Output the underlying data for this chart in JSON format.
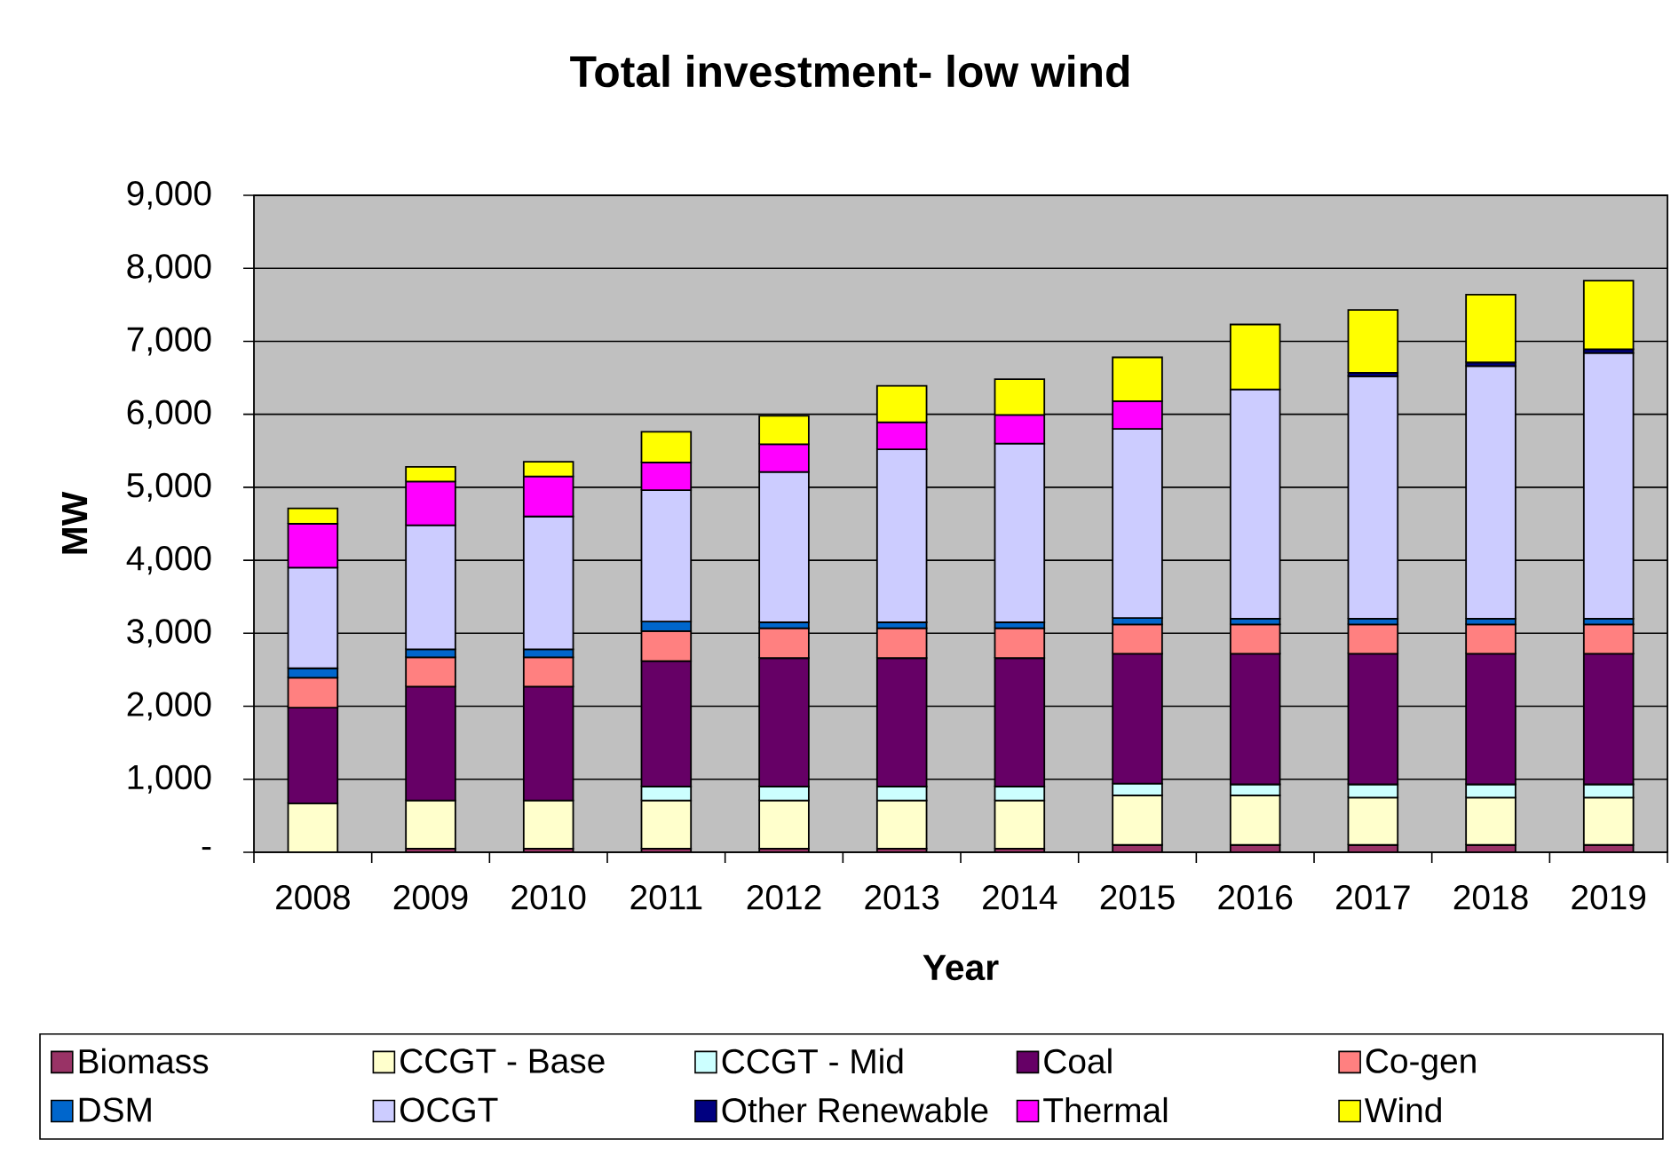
{
  "chart_data": {
    "type": "bar",
    "stacked": true,
    "title": "Total investment- low wind",
    "xlabel": "Year",
    "ylabel": "MW",
    "categories": [
      "2008",
      "2009",
      "2010",
      "2011",
      "2012",
      "2013",
      "2014",
      "2015",
      "2016",
      "2017",
      "2018",
      "2019"
    ],
    "series": [
      {
        "name": "Biomass",
        "color": "#993366",
        "values": [
          0,
          50,
          50,
          50,
          50,
          50,
          50,
          100,
          100,
          100,
          100,
          100
        ]
      },
      {
        "name": "CCGT - Base",
        "color": "#FFFFCC",
        "values": [
          670,
          660,
          660,
          660,
          660,
          660,
          660,
          680,
          680,
          650,
          650,
          650
        ]
      },
      {
        "name": "CCGT - Mid",
        "color": "#CCFFFF",
        "values": [
          0,
          0,
          0,
          190,
          190,
          190,
          190,
          160,
          150,
          180,
          180,
          180
        ]
      },
      {
        "name": "Coal",
        "color": "#660066",
        "values": [
          1310,
          1560,
          1560,
          1720,
          1760,
          1760,
          1760,
          1780,
          1790,
          1790,
          1790,
          1790
        ]
      },
      {
        "name": "Co-gen",
        "color": "#FF8080",
        "values": [
          410,
          400,
          400,
          410,
          410,
          410,
          410,
          400,
          400,
          400,
          400,
          400
        ]
      },
      {
        "name": "DSM",
        "color": "#0066CC",
        "values": [
          130,
          110,
          110,
          130,
          80,
          80,
          80,
          90,
          80,
          80,
          80,
          80
        ]
      },
      {
        "name": "OCGT",
        "color": "#CCCCFF",
        "values": [
          1380,
          1700,
          1820,
          1800,
          2060,
          2370,
          2450,
          2590,
          3140,
          3320,
          3460,
          3640
        ]
      },
      {
        "name": "Other Renewable",
        "color": "#000080",
        "values": [
          0,
          0,
          0,
          0,
          0,
          0,
          0,
          0,
          0,
          50,
          50,
          50
        ]
      },
      {
        "name": "Thermal",
        "color": "#FF00FF",
        "values": [
          600,
          600,
          550,
          380,
          380,
          370,
          390,
          380,
          0,
          0,
          0,
          0
        ]
      },
      {
        "name": "Wind",
        "color": "#FFFF00",
        "values": [
          210,
          200,
          200,
          420,
          390,
          500,
          490,
          600,
          890,
          860,
          930,
          940
        ]
      }
    ],
    "ylim": [
      0,
      9000
    ],
    "yticks": [
      {
        "value": 0,
        "label": "-"
      },
      {
        "value": 1000,
        "label": "1,000"
      },
      {
        "value": 2000,
        "label": "2,000"
      },
      {
        "value": 3000,
        "label": "3,000"
      },
      {
        "value": 4000,
        "label": "4,000"
      },
      {
        "value": 5000,
        "label": "5,000"
      },
      {
        "value": 6000,
        "label": "6,000"
      },
      {
        "value": 7000,
        "label": "7,000"
      },
      {
        "value": 8000,
        "label": "8,000"
      },
      {
        "value": 9000,
        "label": "9,000"
      }
    ],
    "grid": "y",
    "legend": "bottom"
  }
}
